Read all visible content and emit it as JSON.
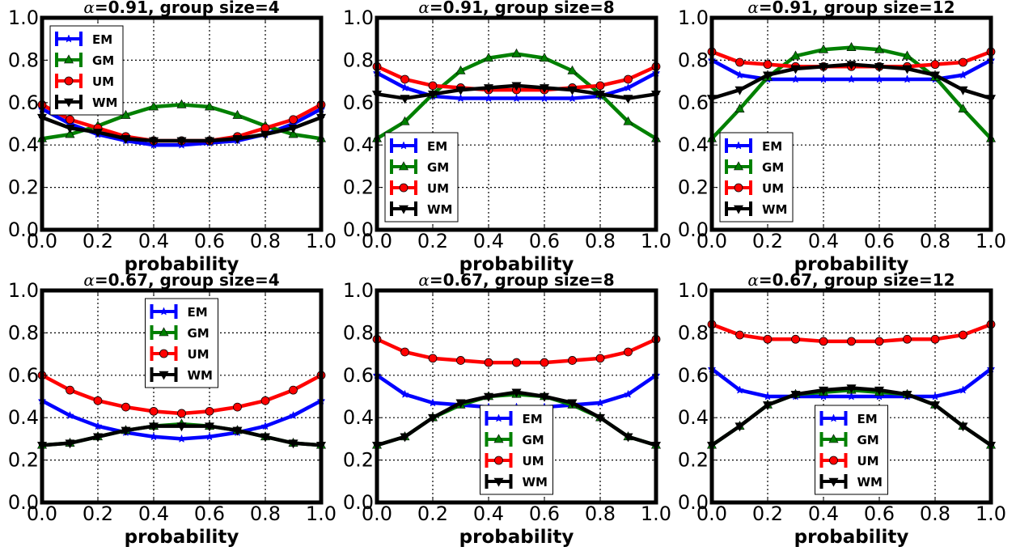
{
  "series_styles": [
    {
      "name": "EM",
      "color": "#0000ff",
      "marker": "star"
    },
    {
      "name": "GM",
      "color": "#008000",
      "marker": "triangle"
    },
    {
      "name": "UM",
      "color": "#ff0000",
      "marker": "circle"
    },
    {
      "name": "WM",
      "color": "#000000",
      "marker": "triangle-down"
    }
  ],
  "chart_data": [
    {
      "type": "line",
      "title_symbol": "α",
      "title": "=0.91, group size=4",
      "xlabel": "probability",
      "ylabel": "",
      "xlim": [
        0,
        1
      ],
      "ylim": [
        0,
        1
      ],
      "xticks": [
        "0.0",
        "0.2",
        "0.4",
        "0.6",
        "0.8",
        "1.0"
      ],
      "yticks": [
        "0.0",
        "0.2",
        "0.4",
        "0.6",
        "0.8",
        "1.0"
      ],
      "grid": true,
      "legend_position": "upper-left",
      "x": [
        0,
        0.1,
        0.2,
        0.3,
        0.4,
        0.5,
        0.6,
        0.7,
        0.8,
        0.9,
        1.0
      ],
      "series": [
        {
          "name": "EM",
          "values": [
            0.57,
            0.5,
            0.45,
            0.42,
            0.4,
            0.4,
            0.41,
            0.42,
            0.45,
            0.5,
            0.57
          ]
        },
        {
          "name": "GM",
          "values": [
            0.43,
            0.45,
            0.49,
            0.54,
            0.58,
            0.59,
            0.58,
            0.54,
            0.49,
            0.45,
            0.43
          ]
        },
        {
          "name": "UM",
          "values": [
            0.59,
            0.52,
            0.48,
            0.44,
            0.42,
            0.42,
            0.42,
            0.44,
            0.48,
            0.52,
            0.59
          ]
        },
        {
          "name": "WM",
          "values": [
            0.53,
            0.48,
            0.46,
            0.43,
            0.42,
            0.42,
            0.42,
            0.43,
            0.45,
            0.48,
            0.53
          ]
        }
      ]
    },
    {
      "type": "line",
      "title_symbol": "α",
      "title": "=0.91, group size=8",
      "xlabel": "probability",
      "ylabel": "",
      "xlim": [
        0,
        1
      ],
      "ylim": [
        0,
        1
      ],
      "xticks": [
        "0.0",
        "0.2",
        "0.4",
        "0.6",
        "0.8",
        "1.0"
      ],
      "yticks": [
        "0.0",
        "0.2",
        "0.4",
        "0.6",
        "0.8",
        "1.0"
      ],
      "grid": true,
      "legend_position": "lower-left",
      "x": [
        0,
        0.1,
        0.2,
        0.3,
        0.4,
        0.5,
        0.6,
        0.7,
        0.8,
        0.9,
        1.0
      ],
      "series": [
        {
          "name": "EM",
          "values": [
            0.74,
            0.67,
            0.63,
            0.62,
            0.62,
            0.62,
            0.62,
            0.62,
            0.63,
            0.67,
            0.74
          ]
        },
        {
          "name": "GM",
          "values": [
            0.43,
            0.51,
            0.64,
            0.75,
            0.81,
            0.83,
            0.81,
            0.75,
            0.64,
            0.51,
            0.43
          ]
        },
        {
          "name": "UM",
          "values": [
            0.77,
            0.71,
            0.68,
            0.67,
            0.66,
            0.66,
            0.66,
            0.67,
            0.68,
            0.71,
            0.77
          ]
        },
        {
          "name": "WM",
          "values": [
            0.64,
            0.62,
            0.64,
            0.66,
            0.67,
            0.68,
            0.67,
            0.66,
            0.64,
            0.62,
            0.64
          ]
        }
      ]
    },
    {
      "type": "line",
      "title_symbol": "α",
      "title": "=0.91, group size=12",
      "xlabel": "probability",
      "ylabel": "",
      "xlim": [
        0,
        1
      ],
      "ylim": [
        0,
        1
      ],
      "xticks": [
        "0.0",
        "0.2",
        "0.4",
        "0.6",
        "0.8",
        "1.0"
      ],
      "yticks": [
        "0.0",
        "0.2",
        "0.4",
        "0.6",
        "0.8",
        "1.0"
      ],
      "grid": true,
      "legend_position": "lower-left",
      "x": [
        0,
        0.1,
        0.2,
        0.3,
        0.4,
        0.5,
        0.6,
        0.7,
        0.8,
        0.9,
        1.0
      ],
      "series": [
        {
          "name": "EM",
          "values": [
            0.8,
            0.73,
            0.71,
            0.71,
            0.71,
            0.71,
            0.71,
            0.71,
            0.71,
            0.73,
            0.8
          ]
        },
        {
          "name": "GM",
          "values": [
            0.43,
            0.57,
            0.72,
            0.82,
            0.85,
            0.86,
            0.85,
            0.82,
            0.72,
            0.57,
            0.43
          ]
        },
        {
          "name": "UM",
          "values": [
            0.84,
            0.79,
            0.78,
            0.77,
            0.77,
            0.77,
            0.77,
            0.77,
            0.78,
            0.79,
            0.84
          ]
        },
        {
          "name": "WM",
          "values": [
            0.62,
            0.66,
            0.73,
            0.76,
            0.77,
            0.78,
            0.77,
            0.76,
            0.73,
            0.66,
            0.62
          ]
        }
      ]
    },
    {
      "type": "line",
      "title_symbol": "α",
      "title": "=0.67, group size=4",
      "xlabel": "probability",
      "ylabel": "",
      "xlim": [
        0,
        1
      ],
      "ylim": [
        0,
        1
      ],
      "xticks": [
        "0.0",
        "0.2",
        "0.4",
        "0.6",
        "0.8",
        "1.0"
      ],
      "yticks": [
        "0.0",
        "0.2",
        "0.4",
        "0.6",
        "0.8",
        "1.0"
      ],
      "grid": true,
      "legend_position": "upper-center",
      "x": [
        0,
        0.1,
        0.2,
        0.3,
        0.4,
        0.5,
        0.6,
        0.7,
        0.8,
        0.9,
        1.0
      ],
      "series": [
        {
          "name": "EM",
          "values": [
            0.48,
            0.41,
            0.36,
            0.33,
            0.31,
            0.3,
            0.31,
            0.33,
            0.36,
            0.41,
            0.48
          ]
        },
        {
          "name": "GM",
          "values": [
            0.27,
            0.28,
            0.31,
            0.34,
            0.36,
            0.37,
            0.36,
            0.34,
            0.31,
            0.28,
            0.27
          ]
        },
        {
          "name": "UM",
          "values": [
            0.6,
            0.53,
            0.48,
            0.45,
            0.43,
            0.42,
            0.43,
            0.45,
            0.48,
            0.53,
            0.6
          ]
        },
        {
          "name": "WM",
          "values": [
            0.27,
            0.28,
            0.31,
            0.34,
            0.36,
            0.36,
            0.36,
            0.34,
            0.31,
            0.28,
            0.27
          ]
        }
      ]
    },
    {
      "type": "line",
      "title_symbol": "α",
      "title": "=0.67, group size=8",
      "xlabel": "probability",
      "ylabel": "",
      "xlim": [
        0,
        1
      ],
      "ylim": [
        0,
        1
      ],
      "xticks": [
        "0.0",
        "0.2",
        "0.4",
        "0.6",
        "0.8",
        "1.0"
      ],
      "yticks": [
        "0.0",
        "0.2",
        "0.4",
        "0.6",
        "0.8",
        "1.0"
      ],
      "grid": true,
      "legend_position": "lower-center",
      "x": [
        0,
        0.1,
        0.2,
        0.3,
        0.4,
        0.5,
        0.6,
        0.7,
        0.8,
        0.9,
        1.0
      ],
      "series": [
        {
          "name": "EM",
          "values": [
            0.6,
            0.51,
            0.47,
            0.46,
            0.45,
            0.45,
            0.45,
            0.46,
            0.47,
            0.51,
            0.6
          ]
        },
        {
          "name": "GM",
          "values": [
            0.27,
            0.31,
            0.4,
            0.46,
            0.5,
            0.51,
            0.5,
            0.46,
            0.4,
            0.31,
            0.27
          ]
        },
        {
          "name": "UM",
          "values": [
            0.77,
            0.71,
            0.68,
            0.67,
            0.66,
            0.66,
            0.66,
            0.67,
            0.68,
            0.71,
            0.77
          ]
        },
        {
          "name": "WM",
          "values": [
            0.27,
            0.31,
            0.4,
            0.47,
            0.5,
            0.52,
            0.5,
            0.47,
            0.4,
            0.31,
            0.27
          ]
        }
      ]
    },
    {
      "type": "line",
      "title_symbol": "α",
      "title": "=0.67, group size=12",
      "xlabel": "probability",
      "ylabel": "",
      "xlim": [
        0,
        1
      ],
      "ylim": [
        0,
        1
      ],
      "xticks": [
        "0.0",
        "0.2",
        "0.4",
        "0.6",
        "0.8",
        "1.0"
      ],
      "yticks": [
        "0.0",
        "0.2",
        "0.4",
        "0.6",
        "0.8",
        "1.0"
      ],
      "grid": true,
      "legend_position": "lower-center",
      "x": [
        0,
        0.1,
        0.2,
        0.3,
        0.4,
        0.5,
        0.6,
        0.7,
        0.8,
        0.9,
        1.0
      ],
      "series": [
        {
          "name": "EM",
          "values": [
            0.63,
            0.53,
            0.5,
            0.5,
            0.5,
            0.5,
            0.5,
            0.5,
            0.5,
            0.53,
            0.63
          ]
        },
        {
          "name": "GM",
          "values": [
            0.27,
            0.36,
            0.46,
            0.51,
            0.52,
            0.53,
            0.52,
            0.51,
            0.46,
            0.36,
            0.27
          ]
        },
        {
          "name": "UM",
          "values": [
            0.84,
            0.79,
            0.77,
            0.77,
            0.76,
            0.76,
            0.76,
            0.77,
            0.77,
            0.79,
            0.84
          ]
        },
        {
          "name": "WM",
          "values": [
            0.27,
            0.36,
            0.46,
            0.51,
            0.53,
            0.54,
            0.53,
            0.51,
            0.46,
            0.36,
            0.27
          ]
        }
      ]
    }
  ]
}
